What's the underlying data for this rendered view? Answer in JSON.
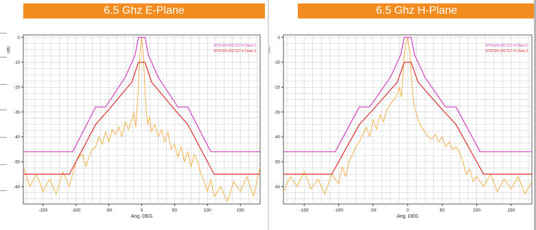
{
  "colors": {
    "title_bar": "#f28c1f",
    "class2": "#d63cc4",
    "class3": "#e02c2c",
    "measured": "#f7a021",
    "grid": "#cfcfcf"
  },
  "chart_data": [
    {
      "type": "line",
      "title": "6.5 Ghz E-Plane",
      "xlabel": "Ang. DEG",
      "ylabel": "(dB)",
      "xlim": [
        -180,
        180
      ],
      "ylim": [
        -67,
        1
      ],
      "xticks": [
        -150,
        -100,
        -50,
        0,
        50,
        100,
        150
      ],
      "yticks": [
        0,
        -10,
        -20,
        -30,
        -40,
        -50,
        -60
      ],
      "grid": true,
      "legend_position": "top-right",
      "series": [
        {
          "name": "ETSI EN 302 217-4 Class 2",
          "color": "#d63cc4",
          "x": [
            -180,
            -105,
            -70,
            -55,
            -25,
            -10,
            -5,
            5,
            10,
            25,
            55,
            70,
            105,
            180
          ],
          "y": [
            -46,
            -46,
            -28,
            -28,
            -16,
            -7,
            0,
            0,
            -7,
            -16,
            -28,
            -28,
            -46,
            -46
          ]
        },
        {
          "name": "ETSI EN 302 217-4 Class 3",
          "color": "#e02c2c",
          "x": [
            -180,
            -110,
            -70,
            -50,
            -15,
            -5,
            5,
            15,
            50,
            70,
            110,
            180
          ],
          "y": [
            -55,
            -55,
            -35,
            -29,
            -18,
            -10,
            -10,
            -18,
            -29,
            -35,
            -55,
            -55
          ]
        },
        {
          "name": "",
          "color": "#f7a021",
          "x": [
            -180,
            -170,
            -160,
            -150,
            -140,
            -130,
            -120,
            -110,
            -100,
            -95,
            -90,
            -85,
            -80,
            -75,
            -70,
            -65,
            -60,
            -55,
            -50,
            -45,
            -40,
            -35,
            -30,
            -25,
            -20,
            -15,
            -12,
            -9,
            -7,
            -5,
            -3,
            -1,
            0,
            1,
            3,
            5,
            7,
            9,
            12,
            15,
            20,
            25,
            30,
            35,
            40,
            45,
            50,
            55,
            60,
            65,
            70,
            75,
            80,
            85,
            90,
            95,
            100,
            105,
            110,
            120,
            130,
            140,
            150,
            160,
            170,
            180
          ],
          "y": [
            -52,
            -60,
            -55,
            -62,
            -57,
            -63,
            -54,
            -60,
            -50,
            -48,
            -47,
            -52,
            -48,
            -45,
            -44,
            -40,
            -43,
            -38,
            -42,
            -37,
            -39,
            -36,
            -40,
            -34,
            -37,
            -33,
            -30,
            -36,
            -28,
            -20,
            -8,
            -2,
            0,
            -3,
            -10,
            -22,
            -30,
            -35,
            -32,
            -38,
            -35,
            -40,
            -37,
            -42,
            -38,
            -45,
            -43,
            -48,
            -44,
            -50,
            -46,
            -52,
            -47,
            -50,
            -55,
            -58,
            -62,
            -57,
            -64,
            -60,
            -66,
            -58,
            -62,
            -56,
            -64,
            -52
          ]
        }
      ]
    },
    {
      "type": "line",
      "title": "6.5 Ghz H-Plane",
      "xlabel": "Ang. DEG",
      "ylabel": "(dB)",
      "xlim": [
        -180,
        180
      ],
      "ylim": [
        -67,
        1
      ],
      "xticks": [
        -150,
        -100,
        -50,
        0,
        50,
        100,
        150
      ],
      "yticks": [
        0,
        -10,
        -20,
        -30,
        -40,
        -50,
        -60
      ],
      "grid": true,
      "legend_position": "top-right",
      "series": [
        {
          "name": "ETSI EN 302 217-4 Class 2",
          "color": "#d63cc4",
          "x": [
            -180,
            -105,
            -70,
            -55,
            -25,
            -10,
            -5,
            5,
            10,
            25,
            55,
            70,
            105,
            180
          ],
          "y": [
            -46,
            -46,
            -28,
            -28,
            -16,
            -7,
            0,
            0,
            -7,
            -16,
            -28,
            -28,
            -46,
            -46
          ]
        },
        {
          "name": "ETSI EN 302 217-4 Class 3",
          "color": "#e02c2c",
          "x": [
            -180,
            -110,
            -70,
            -50,
            -15,
            -5,
            5,
            15,
            50,
            70,
            110,
            180
          ],
          "y": [
            -55,
            -55,
            -35,
            -29,
            -18,
            -10,
            -10,
            -18,
            -29,
            -35,
            -55,
            -55
          ]
        },
        {
          "name": "",
          "color": "#f7a021",
          "x": [
            -180,
            -170,
            -160,
            -150,
            -140,
            -130,
            -120,
            -110,
            -100,
            -95,
            -90,
            -85,
            -80,
            -75,
            -70,
            -65,
            -60,
            -55,
            -50,
            -45,
            -40,
            -35,
            -30,
            -25,
            -20,
            -15,
            -12,
            -9,
            -7,
            -5,
            -3,
            -1,
            0,
            1,
            3,
            5,
            7,
            9,
            12,
            15,
            20,
            25,
            30,
            35,
            40,
            45,
            50,
            55,
            60,
            65,
            70,
            75,
            80,
            85,
            90,
            95,
            100,
            110,
            120,
            130,
            140,
            150,
            160,
            170,
            180
          ],
          "y": [
            -62,
            -56,
            -60,
            -54,
            -61,
            -57,
            -63,
            -55,
            -59,
            -52,
            -56,
            -50,
            -47,
            -44,
            -42,
            -39,
            -36,
            -40,
            -33,
            -37,
            -31,
            -34,
            -29,
            -27,
            -25,
            -23,
            -20,
            -24,
            -15,
            -8,
            -3,
            -1,
            0,
            -2,
            -6,
            -14,
            -22,
            -27,
            -30,
            -33,
            -36,
            -38,
            -40,
            -41,
            -39,
            -42,
            -40,
            -44,
            -42,
            -45,
            -44,
            -46,
            -50,
            -55,
            -53,
            -58,
            -56,
            -60,
            -55,
            -62,
            -57,
            -61,
            -56,
            -63,
            -58
          ]
        }
      ]
    }
  ]
}
